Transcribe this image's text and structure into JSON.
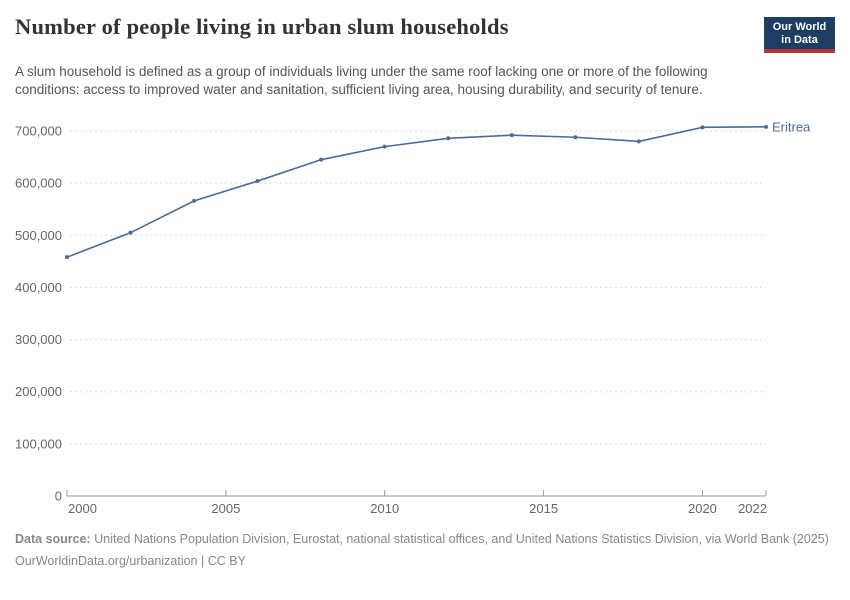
{
  "header": {
    "title": "Number of people living in urban slum households",
    "subtitle": "A slum household is defined as a group of individuals living under the same roof lacking one or more of the following conditions: access to improved water and sanitation, sufficient living area, housing durability, and security of tenure.",
    "logo": {
      "line1": "Our World",
      "line2": "in Data",
      "bg_color": "#1d3d63",
      "accent_color": "#b5353f"
    }
  },
  "chart_data": {
    "type": "line",
    "title": "Number of people living in urban slum households",
    "x": [
      2000,
      2002,
      2004,
      2006,
      2008,
      2010,
      2012,
      2014,
      2016,
      2018,
      2020,
      2022
    ],
    "series": [
      {
        "name": "Eritrea",
        "color": "#4C6A9C",
        "values": [
          458000,
          505000,
          566000,
          604000,
          645000,
          670000,
          686000,
          692000,
          688000,
          680000,
          707000,
          708000
        ]
      }
    ],
    "xlabel": "",
    "ylabel": "",
    "xlim": [
      2000,
      2022
    ],
    "ylim": [
      0,
      700000
    ],
    "x_ticks": [
      2000,
      2005,
      2010,
      2015,
      2020,
      2022
    ],
    "y_ticks": [
      0,
      100000,
      200000,
      300000,
      400000,
      500000,
      600000,
      700000
    ],
    "grid": "horizontal-dashed",
    "legend_position": "line-end-label",
    "axis_color": "#999999",
    "grid_color": "#dddddd",
    "tick_label_color": "#666666"
  },
  "footer": {
    "source_label": "Data source:",
    "source_text": "United Nations Population Division, Eurostat, national statistical offices, and United Nations Statistics Division, via World Bank (2025)",
    "citation": "OurWorldinData.org/urbanization | CC BY"
  }
}
